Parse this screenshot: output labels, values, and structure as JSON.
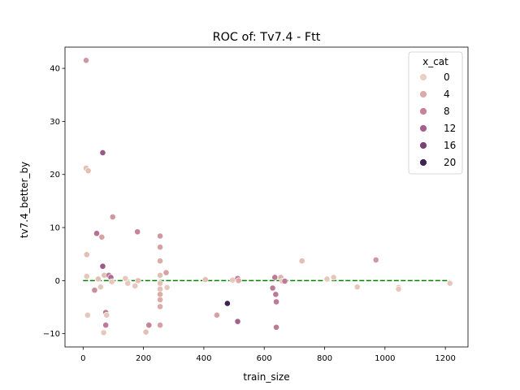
{
  "chart_data": {
    "type": "scatter",
    "title": "ROC of: Tv7.4 - Ftt",
    "xlabel": "train_size",
    "ylabel": "tv7.4_better_by",
    "xlim": [
      -60,
      1275
    ],
    "ylim": [
      -12.5,
      44
    ],
    "xticks": [
      0,
      200,
      400,
      600,
      800,
      1000,
      1200
    ],
    "yticks": [
      -10,
      0,
      10,
      20,
      30,
      40
    ],
    "grid": false,
    "reference_line": {
      "y": 0,
      "x_range": [
        0,
        1215
      ],
      "color": "#008000",
      "style": "dashed"
    },
    "legend": {
      "title": "x_cat",
      "placement": "top-right",
      "entries": [
        {
          "label": "0",
          "color": "#ead0c1"
        },
        {
          "label": "4",
          "color": "#dcaba8"
        },
        {
          "label": "8",
          "color": "#c5829a"
        },
        {
          "label": "12",
          "color": "#a4608e"
        },
        {
          "label": "16",
          "color": "#7a4475"
        },
        {
          "label": "20",
          "color": "#3f2450"
        }
      ]
    },
    "points": [
      {
        "x": 10,
        "y": 41.5,
        "c": 6
      },
      {
        "x": 10,
        "y": 21.2,
        "c": 2
      },
      {
        "x": 17,
        "y": 20.7,
        "c": 2
      },
      {
        "x": 12,
        "y": 4.9,
        "c": 2
      },
      {
        "x": 12,
        "y": 0.8,
        "c": 1
      },
      {
        "x": 15,
        "y": -6.5,
        "c": 1
      },
      {
        "x": 38,
        "y": -1.8,
        "c": 7
      },
      {
        "x": 45,
        "y": 8.9,
        "c": 10
      },
      {
        "x": 50,
        "y": 0.3,
        "c": 2
      },
      {
        "x": 58,
        "y": -1.2,
        "c": 1
      },
      {
        "x": 62,
        "y": 8.2,
        "c": 5
      },
      {
        "x": 65,
        "y": 24.1,
        "c": 13
      },
      {
        "x": 65,
        "y": 2.7,
        "c": 13
      },
      {
        "x": 68,
        "y": -9.8,
        "c": 1
      },
      {
        "x": 70,
        "y": 1.0,
        "c": 2
      },
      {
        "x": 75,
        "y": -6.0,
        "c": 9
      },
      {
        "x": 75,
        "y": -8.4,
        "c": 9
      },
      {
        "x": 78,
        "y": -6.5,
        "c": 1
      },
      {
        "x": 85,
        "y": 1.0,
        "c": 9
      },
      {
        "x": 92,
        "y": 0.6,
        "c": 11
      },
      {
        "x": 95,
        "y": -0.2,
        "c": 1
      },
      {
        "x": 98,
        "y": 12.0,
        "c": 6
      },
      {
        "x": 140,
        "y": 0.4,
        "c": 1
      },
      {
        "x": 148,
        "y": -0.5,
        "c": 1
      },
      {
        "x": 172,
        "y": -1.0,
        "c": 1
      },
      {
        "x": 180,
        "y": 9.2,
        "c": 8
      },
      {
        "x": 182,
        "y": 0.0,
        "c": 2
      },
      {
        "x": 208,
        "y": -9.7,
        "c": 2
      },
      {
        "x": 218,
        "y": -8.4,
        "c": 8
      },
      {
        "x": 255,
        "y": 8.4,
        "c": 6
      },
      {
        "x": 255,
        "y": 6.3,
        "c": 5
      },
      {
        "x": 255,
        "y": 3.7,
        "c": 4
      },
      {
        "x": 255,
        "y": 1.0,
        "c": 2
      },
      {
        "x": 255,
        "y": -0.5,
        "c": 2
      },
      {
        "x": 255,
        "y": -1.6,
        "c": 2
      },
      {
        "x": 255,
        "y": -2.6,
        "c": 4
      },
      {
        "x": 255,
        "y": -3.6,
        "c": 4
      },
      {
        "x": 255,
        "y": -4.9,
        "c": 4
      },
      {
        "x": 255,
        "y": -8.4,
        "c": 5
      },
      {
        "x": 275,
        "y": 1.5,
        "c": 5
      },
      {
        "x": 278,
        "y": -1.3,
        "c": 1
      },
      {
        "x": 405,
        "y": 0.2,
        "c": 2
      },
      {
        "x": 443,
        "y": -6.5,
        "c": 5
      },
      {
        "x": 478,
        "y": -4.3,
        "c": 20
      },
      {
        "x": 495,
        "y": 0.1,
        "c": 1
      },
      {
        "x": 512,
        "y": 0.4,
        "c": 9
      },
      {
        "x": 512,
        "y": -7.7,
        "c": 12
      },
      {
        "x": 515,
        "y": 0.0,
        "c": 4
      },
      {
        "x": 628,
        "y": -1.4,
        "c": 9
      },
      {
        "x": 635,
        "y": 0.6,
        "c": 9
      },
      {
        "x": 638,
        "y": -2.6,
        "c": 9
      },
      {
        "x": 640,
        "y": -4.0,
        "c": 9
      },
      {
        "x": 640,
        "y": -8.8,
        "c": 9
      },
      {
        "x": 655,
        "y": 0.6,
        "c": 3
      },
      {
        "x": 660,
        "y": -0.1,
        "c": 1
      },
      {
        "x": 668,
        "y": -0.1,
        "c": 9
      },
      {
        "x": 725,
        "y": 3.7,
        "c": 2
      },
      {
        "x": 808,
        "y": 0.3,
        "c": 1
      },
      {
        "x": 830,
        "y": 0.6,
        "c": 1
      },
      {
        "x": 908,
        "y": -1.2,
        "c": 1
      },
      {
        "x": 970,
        "y": 3.9,
        "c": 6
      },
      {
        "x": 1045,
        "y": -1.3,
        "c": 1
      },
      {
        "x": 1045,
        "y": -1.6,
        "c": 1
      },
      {
        "x": 1215,
        "y": -0.5,
        "c": 1
      }
    ]
  }
}
